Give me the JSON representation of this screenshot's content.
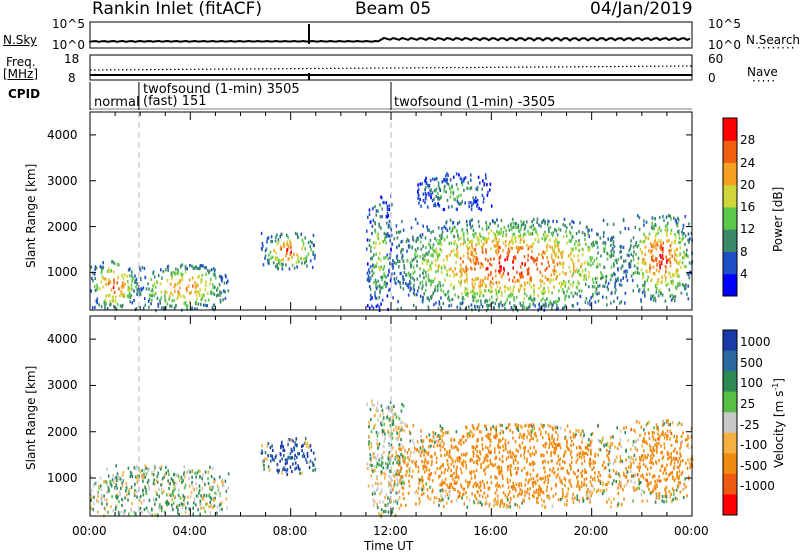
{
  "header": {
    "station": "Rankin Inlet (fitACF)",
    "beam": "Beam 05",
    "date": "04/Jan/2019"
  },
  "top_panels": {
    "nsky_label": "N.Sky",
    "nsearch_label": "N.Search",
    "nsky_ticks": [
      "10^5",
      "10^0"
    ],
    "nsearch_ticks": [
      "10^5",
      "10^0"
    ],
    "freq_label": "Freq.",
    "freq_unit": "[MHz]",
    "freq_ticks": [
      "18",
      "8"
    ],
    "nave_label": "Nave",
    "nave_ticks": [
      "60",
      "0"
    ],
    "cpid_label": "CPID",
    "cpid_segments": [
      {
        "name": "normal",
        "start_hour": 0.0,
        "end_hour": 1.95
      },
      {
        "name": "twofsound (1-min) 3505 (fast) 151",
        "start_hour": 1.95,
        "end_hour": 12.0
      },
      {
        "name": "twofsound (1-min) -3505",
        "start_hour": 12.0,
        "end_hour": 24.0
      }
    ],
    "cpid_text": {
      "normal": "normal",
      "twofsound_line1": "twofsound (1-min) 3505",
      "twofsound_line2": "(fast) 151",
      "twofsound_neg": "twofsound (1-min) -3505"
    }
  },
  "chart_data": [
    {
      "type": "heatmap",
      "title": "",
      "ylabel": "Slant Range [km]",
      "xlabel": "Time UT",
      "x_ticks": [
        "00:00",
        "04:00",
        "08:00",
        "12:00",
        "16:00",
        "20:00",
        "00:00"
      ],
      "x_range_hours": [
        0,
        24
      ],
      "y_range_km": [
        180,
        4500
      ],
      "y_ticks": [
        1000,
        2000,
        3000,
        4000
      ],
      "colorbar": {
        "label": "Power [dB]",
        "ticks": [
          4,
          8,
          12,
          16,
          20,
          24,
          28
        ],
        "range": [
          0,
          30
        ],
        "colors": [
          "#0000ff",
          "#2050c8",
          "#3a8a6a",
          "#5cc84a",
          "#cfd63a",
          "#f4a020",
          "#f06010",
          "#ff0000"
        ]
      },
      "regions": [
        {
          "start_hour": 0.0,
          "end_hour": 1.9,
          "range_min_km": 200,
          "range_max_km": 1300,
          "peak_db": 28
        },
        {
          "start_hour": 1.9,
          "end_hour": 5.5,
          "range_min_km": 200,
          "range_max_km": 1200,
          "peak_db": 26
        },
        {
          "start_hour": 6.8,
          "end_hour": 9.0,
          "range_min_km": 1100,
          "range_max_km": 1900,
          "peak_db": 28
        },
        {
          "start_hour": 11.0,
          "end_hour": 12.0,
          "range_min_km": 200,
          "range_max_km": 2700,
          "peak_db": 18
        },
        {
          "start_hour": 12.0,
          "end_hour": 21.5,
          "range_min_km": 200,
          "range_max_km": 2200,
          "peak_db": 30
        },
        {
          "start_hour": 21.5,
          "end_hour": 24.0,
          "range_min_km": 400,
          "range_max_km": 2300,
          "peak_db": 30
        },
        {
          "start_hour": 13.0,
          "end_hour": 16.0,
          "range_min_km": 2400,
          "range_max_km": 3200,
          "peak_db": 14
        }
      ],
      "vertical_markers_hours": [
        1.95,
        12.0
      ]
    },
    {
      "type": "heatmap",
      "title": "",
      "ylabel": "Slant Range [km]",
      "xlabel": "Time UT",
      "x_ticks": [
        "00:00",
        "04:00",
        "08:00",
        "12:00",
        "16:00",
        "20:00",
        "00:00"
      ],
      "x_range_hours": [
        0,
        24
      ],
      "y_range_km": [
        180,
        4500
      ],
      "y_ticks": [
        1000,
        2000,
        3000,
        4000
      ],
      "colorbar": {
        "label": "Velocity [m s^-1]",
        "ticks": [
          1000,
          500,
          100,
          25,
          -25,
          -100,
          -500,
          -1000
        ],
        "colors": [
          "#1a3aa8",
          "#2a6aa0",
          "#2e8a55",
          "#55c043",
          "#c8c8c8",
          "#f4b040",
          "#f08a10",
          "#f05a10",
          "#ff0000"
        ]
      },
      "regions": [
        {
          "start_hour": 0.0,
          "end_hour": 5.5,
          "range_min_km": 200,
          "range_max_km": 1300,
          "velocity": 25
        },
        {
          "start_hour": 6.8,
          "end_hour": 9.0,
          "range_min_km": 1100,
          "range_max_km": 1900,
          "velocity": 600
        },
        {
          "start_hour": 11.0,
          "end_hour": 12.5,
          "range_min_km": 200,
          "range_max_km": 2700,
          "velocity": 0
        },
        {
          "start_hour": 12.0,
          "end_hour": 21.5,
          "range_min_km": 400,
          "range_max_km": 2200,
          "velocity": -300
        },
        {
          "start_hour": 21.5,
          "end_hour": 24.0,
          "range_min_km": 500,
          "range_max_km": 2300,
          "velocity": -300
        }
      ],
      "vertical_markers_hours": [
        1.95,
        12.0
      ]
    }
  ],
  "colorbar_labels": {
    "power": "Power [dB]",
    "velocity_main": "Velocity [m s",
    "velocity_sup": "-1",
    "velocity_close": "]"
  },
  "axis_labels": {
    "ylabel": "Slant Range [km]",
    "xlabel": "Time UT"
  }
}
